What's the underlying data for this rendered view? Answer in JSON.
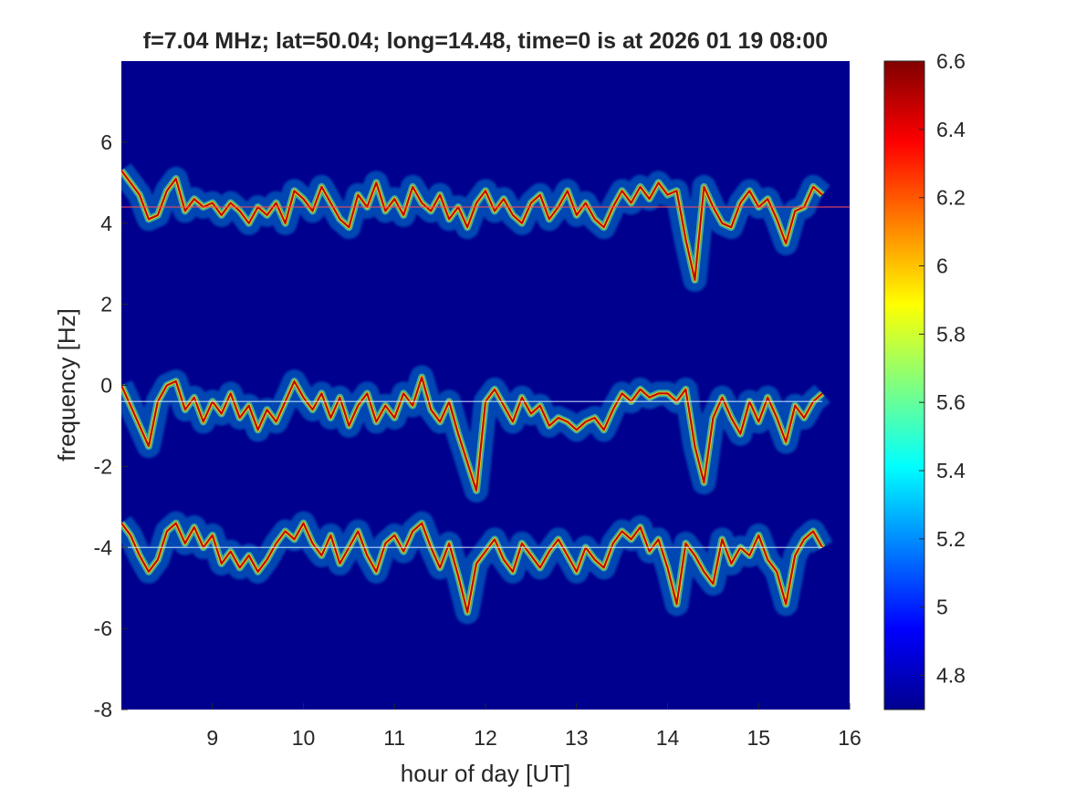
{
  "chart_data": {
    "type": "heatmap",
    "title": "f=7.04 MHz;  lat=50.04; long=14.48, time=0 is at 2026 01 19 08:00",
    "xlabel": "hour of day [UT]",
    "ylabel": "frequency [Hz]",
    "xlim": [
      8,
      16
    ],
    "ylim": [
      -8,
      8
    ],
    "x_ticks": [
      9,
      10,
      11,
      12,
      13,
      14,
      15,
      16
    ],
    "y_ticks": [
      6,
      4,
      2,
      0,
      -2,
      -4,
      -6,
      -8
    ],
    "colorbar": {
      "colormap": "jet",
      "clim": [
        4.7,
        6.6
      ],
      "ticks": [
        6.6,
        6.4,
        6.2,
        6,
        5.8,
        5.6,
        5.4,
        5.2,
        5,
        4.8
      ]
    },
    "background_color": "#00008f",
    "series": [
      {
        "band": "upper",
        "carrier_line": 4.4,
        "x": [
          8.0,
          8.1,
          8.2,
          8.3,
          8.4,
          8.5,
          8.6,
          8.7,
          8.8,
          8.9,
          9.0,
          9.1,
          9.2,
          9.3,
          9.4,
          9.5,
          9.6,
          9.7,
          9.8,
          9.9,
          10.0,
          10.1,
          10.2,
          10.3,
          10.4,
          10.5,
          10.6,
          10.7,
          10.8,
          10.9,
          11.0,
          11.1,
          11.2,
          11.3,
          11.4,
          11.5,
          11.6,
          11.7,
          11.8,
          11.9,
          12.0,
          12.1,
          12.2,
          12.3,
          12.4,
          12.5,
          12.6,
          12.7,
          12.8,
          12.9,
          13.0,
          13.1,
          13.2,
          13.3,
          13.4,
          13.5,
          13.6,
          13.7,
          13.8,
          13.9,
          14.0,
          14.1,
          14.2,
          14.3,
          14.4,
          14.5,
          14.6,
          14.7,
          14.8,
          14.9,
          15.0,
          15.1,
          15.2,
          15.3,
          15.4,
          15.5,
          15.6,
          15.7
        ],
        "y": [
          5.3,
          5.0,
          4.7,
          4.1,
          4.2,
          4.8,
          5.1,
          4.3,
          4.6,
          4.4,
          4.5,
          4.2,
          4.5,
          4.3,
          4.0,
          4.4,
          4.2,
          4.5,
          4.0,
          4.8,
          4.6,
          4.3,
          4.9,
          4.5,
          4.1,
          3.9,
          4.7,
          4.4,
          5.0,
          4.3,
          4.6,
          4.2,
          4.9,
          4.5,
          4.3,
          4.7,
          4.1,
          4.4,
          3.9,
          4.5,
          4.8,
          4.3,
          4.6,
          4.2,
          4.0,
          4.5,
          4.7,
          4.1,
          4.4,
          4.8,
          4.2,
          4.5,
          4.1,
          3.9,
          4.4,
          4.8,
          4.5,
          4.9,
          4.6,
          5.0,
          4.7,
          4.8,
          3.6,
          2.6,
          4.9,
          4.4,
          4.0,
          3.9,
          4.5,
          4.8,
          4.4,
          4.6,
          4.1,
          3.5,
          4.3,
          4.4,
          4.9,
          4.7
        ]
      },
      {
        "band": "middle",
        "carrier_line": -0.4,
        "x": [
          8.0,
          8.1,
          8.2,
          8.3,
          8.4,
          8.5,
          8.6,
          8.7,
          8.8,
          8.9,
          9.0,
          9.1,
          9.2,
          9.3,
          9.4,
          9.5,
          9.6,
          9.7,
          9.8,
          9.9,
          10.0,
          10.1,
          10.2,
          10.3,
          10.4,
          10.5,
          10.6,
          10.7,
          10.8,
          10.9,
          11.0,
          11.1,
          11.2,
          11.3,
          11.4,
          11.5,
          11.6,
          11.7,
          11.8,
          11.9,
          12.0,
          12.1,
          12.2,
          12.3,
          12.4,
          12.5,
          12.6,
          12.7,
          12.8,
          12.9,
          13.0,
          13.1,
          13.2,
          13.3,
          13.4,
          13.5,
          13.6,
          13.7,
          13.8,
          13.9,
          14.0,
          14.1,
          14.2,
          14.3,
          14.4,
          14.5,
          14.6,
          14.7,
          14.8,
          14.9,
          15.0,
          15.1,
          15.2,
          15.3,
          15.4,
          15.5,
          15.6,
          15.7
        ],
        "y": [
          0.0,
          -0.5,
          -1.0,
          -1.5,
          -0.4,
          0.0,
          0.1,
          -0.6,
          -0.3,
          -0.9,
          -0.4,
          -0.7,
          -0.2,
          -0.8,
          -0.5,
          -1.1,
          -0.6,
          -0.9,
          -0.4,
          0.1,
          -0.3,
          -0.6,
          -0.2,
          -0.8,
          -0.3,
          -1.0,
          -0.5,
          -0.2,
          -0.9,
          -0.5,
          -0.8,
          -0.2,
          -0.5,
          0.2,
          -0.6,
          -0.9,
          -0.4,
          -1.2,
          -1.9,
          -2.6,
          -0.4,
          -0.1,
          -0.5,
          -0.9,
          -0.3,
          -0.7,
          -0.5,
          -1.0,
          -0.8,
          -0.9,
          -1.1,
          -0.9,
          -0.8,
          -1.1,
          -0.6,
          -0.2,
          -0.4,
          -0.1,
          -0.3,
          -0.2,
          -0.2,
          -0.4,
          -0.1,
          -1.5,
          -2.4,
          -0.8,
          -0.3,
          -0.8,
          -1.2,
          -0.4,
          -0.9,
          -0.3,
          -0.8,
          -1.4,
          -0.5,
          -0.8,
          -0.4,
          -0.2
        ]
      },
      {
        "band": "lower",
        "carrier_line": -4.0,
        "x": [
          8.0,
          8.1,
          8.2,
          8.3,
          8.4,
          8.5,
          8.6,
          8.7,
          8.8,
          8.9,
          9.0,
          9.1,
          9.2,
          9.3,
          9.4,
          9.5,
          9.6,
          9.7,
          9.8,
          9.9,
          10.0,
          10.1,
          10.2,
          10.3,
          10.4,
          10.5,
          10.6,
          10.7,
          10.8,
          10.9,
          11.0,
          11.1,
          11.2,
          11.3,
          11.4,
          11.5,
          11.6,
          11.7,
          11.8,
          11.9,
          12.0,
          12.1,
          12.2,
          12.3,
          12.4,
          12.5,
          12.6,
          12.7,
          12.8,
          12.9,
          13.0,
          13.1,
          13.2,
          13.3,
          13.4,
          13.5,
          13.6,
          13.7,
          13.8,
          13.9,
          14.0,
          14.1,
          14.2,
          14.3,
          14.4,
          14.5,
          14.6,
          14.7,
          14.8,
          14.9,
          15.0,
          15.1,
          15.2,
          15.3,
          15.4,
          15.5,
          15.6,
          15.7
        ],
        "y": [
          -3.4,
          -3.7,
          -4.2,
          -4.6,
          -4.3,
          -3.6,
          -3.4,
          -3.9,
          -3.5,
          -4.0,
          -3.7,
          -4.4,
          -4.1,
          -4.5,
          -4.2,
          -4.6,
          -4.3,
          -3.9,
          -3.6,
          -3.8,
          -3.4,
          -3.9,
          -4.2,
          -3.7,
          -4.4,
          -4.0,
          -3.6,
          -4.2,
          -4.6,
          -3.9,
          -3.7,
          -4.1,
          -3.6,
          -3.4,
          -4.0,
          -4.5,
          -3.9,
          -4.7,
          -5.6,
          -4.4,
          -4.1,
          -3.8,
          -4.3,
          -4.6,
          -3.9,
          -4.2,
          -4.5,
          -4.1,
          -3.8,
          -4.2,
          -4.6,
          -4.0,
          -4.3,
          -4.5,
          -3.9,
          -3.6,
          -3.8,
          -3.5,
          -4.1,
          -3.8,
          -4.5,
          -5.4,
          -3.9,
          -4.2,
          -4.6,
          -4.9,
          -3.8,
          -4.4,
          -4.0,
          -4.2,
          -3.7,
          -4.3,
          -4.6,
          -5.4,
          -4.2,
          -3.8,
          -3.6,
          -4.0
        ]
      }
    ]
  }
}
